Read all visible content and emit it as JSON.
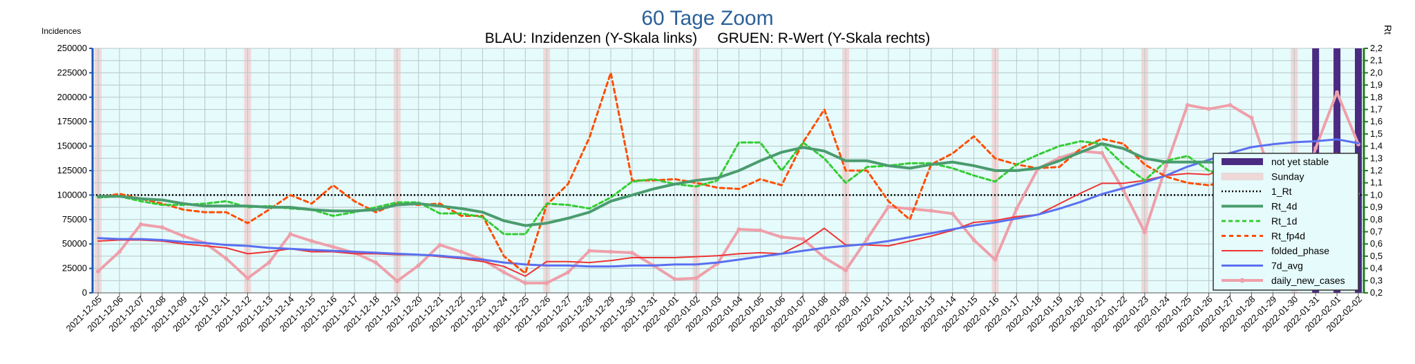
{
  "chart_data": {
    "type": "line",
    "title": "60 Tage Zoom",
    "subtitle": "BLAU: Inzidenzen (Y-Skala links)     GRUEN: R-Wert (Y-Skala rechts)",
    "ylabel": "Incidences",
    "y2label": "Rt",
    "ylim": [
      0,
      250000
    ],
    "y2lim": [
      0.2,
      2.2
    ],
    "yticks": [
      "0",
      "25000",
      "50000",
      "75000",
      "100000",
      "125000",
      "150000",
      "175000",
      "200000",
      "225000",
      "250000"
    ],
    "y2ticks": [
      "0,2",
      "0,3",
      "0,4",
      "0,5",
      "0,6",
      "0,7",
      "0,8",
      "0,9",
      "1,0",
      "1,1",
      "1,2",
      "1,3",
      "1,4",
      "1,5",
      "1,6",
      "1,7",
      "1,8",
      "1,9",
      "2,0",
      "2,1",
      "2,2"
    ],
    "grid": true,
    "legend_position": "right",
    "colors": {
      "plot_bg": "#e6fbfb",
      "grid": "#b7c6c6",
      "left_axis": "#1f56b5",
      "right_axis": "#1f7a1f",
      "title": "#2a6099",
      "not_yet_stable": "#4b2a82",
      "sunday": "#f0d8d8",
      "rt_1": "#000000",
      "rt_4d": "#4a9c6e",
      "rt_1d": "#33cc33",
      "rt_fp4d": "#ff4d00",
      "folded_phase": "#ee3333",
      "avg_7d": "#5a6ff0",
      "daily": "#eea0aa"
    },
    "categories": [
      "2021-12-05",
      "2021-12-06",
      "2021-12-07",
      "2021-12-08",
      "2021-12-09",
      "2021-12-10",
      "2021-12-11",
      "2021-12-12",
      "2021-12-13",
      "2021-12-14",
      "2021-12-15",
      "2021-12-16",
      "2021-12-17",
      "2021-12-18",
      "2021-12-19",
      "2021-12-20",
      "2021-12-21",
      "2021-12-22",
      "2021-12-23",
      "2021-12-24",
      "2021-12-25",
      "2021-12-26",
      "2021-12-27",
      "2021-12-28",
      "2021-12-29",
      "2021-12-30",
      "2021-12-31",
      "2022-01-01",
      "2022-01-02",
      "2022-01-03",
      "2022-01-04",
      "2022-01-05",
      "2022-01-06",
      "2022-01-07",
      "2022-01-08",
      "2022-01-09",
      "2022-01-10",
      "2022-01-11",
      "2022-01-12",
      "2022-01-13",
      "2022-01-14",
      "2022-01-15",
      "2022-01-16",
      "2022-01-17",
      "2022-01-18",
      "2022-01-19",
      "2022-01-20",
      "2022-01-21",
      "2022-01-22",
      "2022-01-23",
      "2022-01-24",
      "2022-01-25",
      "2022-01-26",
      "2022-01-27",
      "2022-01-28",
      "2022-01-29",
      "2022-01-30",
      "2022-01-31",
      "2022-02-01",
      "2022-02-02"
    ],
    "sundays": [
      "2021-12-05",
      "2021-12-12",
      "2021-12-19",
      "2021-12-26",
      "2022-01-02",
      "2022-01-09",
      "2022-01-16",
      "2022-01-23",
      "2022-01-30"
    ],
    "not_yet_stable": [
      "2022-01-31",
      "2022-02-01",
      "2022-02-02"
    ],
    "reference_rt": 1.0,
    "series": [
      {
        "name": "daily_new_cases",
        "axis": "left",
        "width": 4,
        "dash": "",
        "marker": true,
        "values": [
          22000,
          42000,
          70000,
          67000,
          58000,
          51000,
          35000,
          15000,
          31000,
          60000,
          53000,
          47000,
          41000,
          31000,
          12000,
          28000,
          49000,
          42000,
          34000,
          21000,
          10000,
          10000,
          21000,
          43000,
          42000,
          41000,
          28000,
          14000,
          15000,
          30000,
          65000,
          64000,
          57000,
          55000,
          36000,
          23000,
          55000,
          88000,
          86000,
          84000,
          81000,
          54000,
          34000,
          86000,
          127000,
          138000,
          145000,
          143000,
          105000,
          62000,
          130000,
          192000,
          188000,
          192000,
          179000,
          115000,
          72000,
          148000,
          205000,
          152000
        ]
      },
      {
        "name": "folded_phase",
        "axis": "left",
        "width": 2,
        "dash": "",
        "marker": false,
        "values": [
          53000,
          54000,
          54000,
          53000,
          50000,
          48000,
          46000,
          40000,
          42000,
          45000,
          42000,
          42000,
          40000,
          40000,
          39000,
          39000,
          37000,
          35000,
          32000,
          27000,
          17000,
          32000,
          32000,
          31000,
          33000,
          36000,
          36000,
          36000,
          37000,
          38000,
          40000,
          41000,
          40000,
          51000,
          66000,
          49000,
          49000,
          48000,
          53000,
          58000,
          64000,
          72000,
          74000,
          78000,
          80000,
          91000,
          102000,
          112000,
          112000,
          115000,
          120000,
          122000,
          121000,
          130000,
          134000,
          140000,
          136000,
          137000,
          143000,
          123000
        ]
      },
      {
        "name": "7d_avg",
        "axis": "left",
        "width": 3,
        "dash": "",
        "marker": false,
        "values": [
          56000,
          55000,
          55000,
          54000,
          52000,
          51000,
          49000,
          48000,
          46000,
          45000,
          44000,
          43000,
          42000,
          41000,
          40000,
          39000,
          38000,
          36000,
          34000,
          31000,
          29000,
          28000,
          28000,
          27000,
          27000,
          28000,
          28000,
          29000,
          29000,
          31000,
          34000,
          37000,
          40000,
          43000,
          46000,
          48000,
          50000,
          53000,
          57000,
          61000,
          65000,
          69000,
          72000,
          76000,
          80000,
          86000,
          93000,
          101000,
          107000,
          113000,
          120000,
          129000,
          136000,
          143000,
          149000,
          152000,
          154000,
          155000,
          157000,
          153000
        ]
      },
      {
        "name": "Rt_fp4d",
        "axis": "right",
        "width": 3,
        "dash": "6,5",
        "marker": false,
        "values": [
          0.98,
          1.01,
          0.97,
          0.93,
          0.88,
          0.86,
          0.86,
          0.77,
          0.88,
          1.0,
          0.93,
          1.08,
          0.95,
          0.86,
          0.93,
          0.92,
          0.93,
          0.83,
          0.83,
          0.5,
          0.36,
          0.92,
          1.09,
          1.47,
          2.0,
          1.12,
          1.12,
          1.13,
          1.1,
          1.06,
          1.05,
          1.13,
          1.08,
          1.43,
          1.7,
          1.2,
          1.2,
          0.95,
          0.8,
          1.25,
          1.34,
          1.48,
          1.3,
          1.25,
          1.22,
          1.23,
          1.38,
          1.46,
          1.42,
          1.25,
          1.15,
          1.1,
          1.08,
          1.12,
          1.1,
          1.13,
          1.1,
          1.06,
          1.05,
          0.88
        ]
      },
      {
        "name": "Rt_1d",
        "axis": "right",
        "width": 3,
        "dash": "6,4",
        "marker": false,
        "values": [
          0.98,
          0.99,
          0.95,
          0.92,
          0.92,
          0.93,
          0.95,
          0.9,
          0.91,
          0.89,
          0.88,
          0.83,
          0.86,
          0.9,
          0.94,
          0.94,
          0.85,
          0.85,
          0.82,
          0.68,
          0.68,
          0.93,
          0.92,
          0.89,
          0.98,
          1.11,
          1.13,
          1.09,
          1.07,
          1.12,
          1.43,
          1.43,
          1.2,
          1.43,
          1.3,
          1.1,
          1.23,
          1.24,
          1.26,
          1.26,
          1.22,
          1.16,
          1.11,
          1.25,
          1.33,
          1.4,
          1.44,
          1.42,
          1.25,
          1.12,
          1.28,
          1.32,
          1.2,
          1.15,
          1.1,
          1.08,
          1.03,
          1.03,
          1.05,
          0.99
        ]
      },
      {
        "name": "Rt_4d",
        "axis": "right",
        "width": 4,
        "dash": "",
        "marker": false,
        "values": [
          0.99,
          0.99,
          0.97,
          0.96,
          0.93,
          0.91,
          0.91,
          0.91,
          0.9,
          0.9,
          0.88,
          0.87,
          0.87,
          0.88,
          0.92,
          0.93,
          0.91,
          0.89,
          0.86,
          0.79,
          0.75,
          0.77,
          0.81,
          0.86,
          0.95,
          1.0,
          1.05,
          1.09,
          1.12,
          1.14,
          1.2,
          1.28,
          1.35,
          1.39,
          1.36,
          1.28,
          1.28,
          1.24,
          1.22,
          1.25,
          1.27,
          1.24,
          1.2,
          1.2,
          1.22,
          1.28,
          1.35,
          1.42,
          1.38,
          1.3,
          1.27,
          1.27,
          1.27,
          1.26,
          1.2,
          1.14,
          1.1,
          1.06,
          1.06,
          1.01
        ]
      }
    ],
    "legend": [
      {
        "key": "nys",
        "label": "not yet stable"
      },
      {
        "key": "sun",
        "label": "Sunday"
      },
      {
        "key": "rt1",
        "label": "1_Rt"
      },
      {
        "key": "rt4",
        "label": "Rt_4d"
      },
      {
        "key": "r1d",
        "label": "Rt_1d"
      },
      {
        "key": "fp4",
        "label": "Rt_fp4d"
      },
      {
        "key": "fph",
        "label": "folded_phase"
      },
      {
        "key": "avg",
        "label": "7d_avg"
      },
      {
        "key": "dly",
        "label": "daily_new_cases"
      }
    ]
  }
}
